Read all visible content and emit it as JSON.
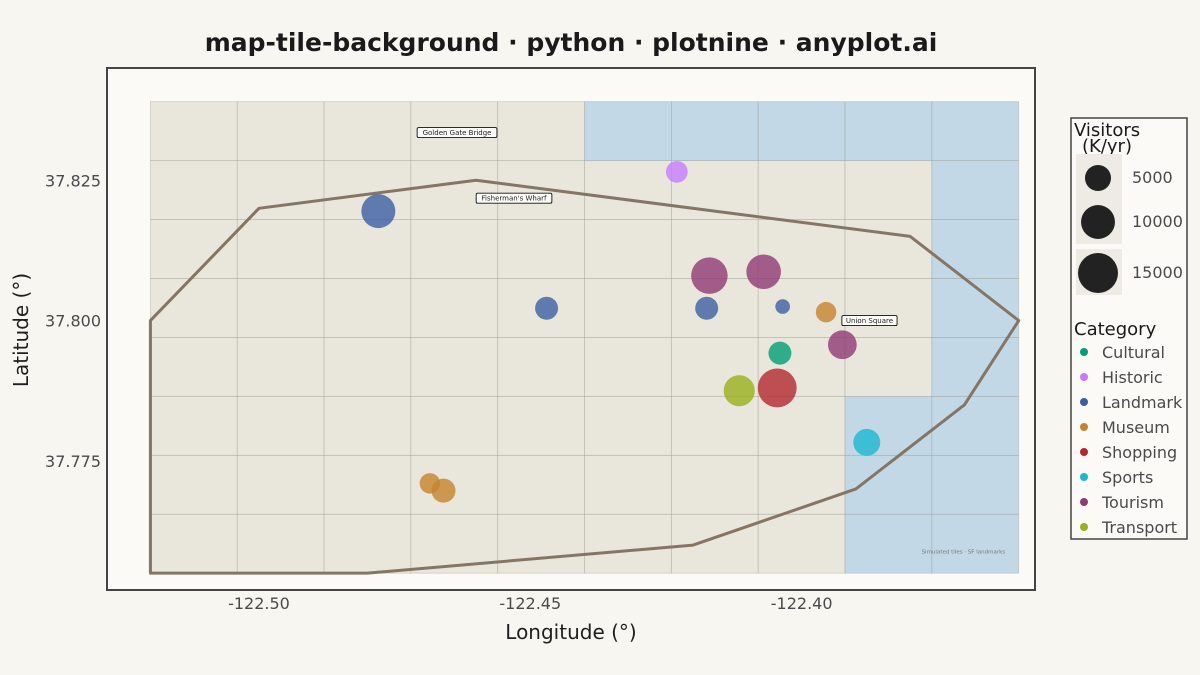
{
  "chart_data": {
    "type": "scatter",
    "title": "map-tile-background · python · plotnine · anyplot.ai",
    "xlabel": "Longitude (°)",
    "ylabel": "Latitude (°)",
    "xlim": [
      -122.528,
      -122.357
    ],
    "ylim": [
      37.752,
      37.845
    ],
    "x_ticks": [
      -122.5,
      -122.45,
      -122.4
    ],
    "x_tick_labels": [
      "-122.50",
      "-122.45",
      "-122.40"
    ],
    "y_ticks": [
      37.775,
      37.8,
      37.825
    ],
    "y_tick_labels": [
      "37.775",
      "37.800",
      "37.825"
    ],
    "grid": false,
    "tiles": {
      "x_breaks": [
        -122.52,
        -122.504,
        -122.488,
        -122.472,
        -122.456,
        -122.44,
        -122.424,
        -122.408,
        -122.392,
        -122.376,
        -122.36
      ],
      "y_breaks": [
        37.755,
        37.7655,
        37.776,
        37.7865,
        37.797,
        37.8075,
        37.818,
        37.8285,
        37.839
      ],
      "land_color": "#E9E6DC",
      "water_color": "#C2D8E6",
      "water_tiles": [
        [
          5,
          7
        ],
        [
          6,
          7
        ],
        [
          7,
          7
        ],
        [
          8,
          7
        ],
        [
          9,
          7
        ],
        [
          9,
          0
        ],
        [
          9,
          1
        ],
        [
          9,
          2
        ],
        [
          9,
          3
        ],
        [
          9,
          4
        ],
        [
          9,
          5
        ],
        [
          9,
          6
        ],
        [
          8,
          0
        ],
        [
          8,
          1
        ],
        [
          8,
          2
        ]
      ]
    },
    "boundary": {
      "color": "#857565",
      "points": [
        [
          -122.52,
          37.8
        ],
        [
          -122.5,
          37.82
        ],
        [
          -122.46,
          37.825
        ],
        [
          -122.38,
          37.815
        ],
        [
          -122.36,
          37.8
        ],
        [
          -122.37,
          37.785
        ],
        [
          -122.39,
          37.77
        ],
        [
          -122.42,
          37.76
        ],
        [
          -122.48,
          37.755
        ],
        [
          -122.52,
          37.755
        ]
      ]
    },
    "map_labels": [
      {
        "text": "Golden Gate Bridge",
        "x": -122.4635,
        "y": 37.8335
      },
      {
        "text": "Fisherman's Wharf",
        "x": -122.453,
        "y": 37.8218
      },
      {
        "text": "Union Square",
        "x": -122.3875,
        "y": 37.8
      }
    ],
    "credit": "Simulated tiles · SF landmarks",
    "size_legend": {
      "title_lines": [
        "Visitors",
        "(K/yr)"
      ],
      "values": [
        5000,
        10000,
        15000
      ]
    },
    "category_legend": {
      "title": "Category",
      "items": [
        {
          "name": "Cultural",
          "color": "#009E73"
        },
        {
          "name": "Historic",
          "color": "#C77CFF"
        },
        {
          "name": "Landmark",
          "color": "#3B5FA4"
        },
        {
          "name": "Museum",
          "color": "#C5832D"
        },
        {
          "name": "Shopping",
          "color": "#B2282F"
        },
        {
          "name": "Sports",
          "color": "#1CB8CF"
        },
        {
          "name": "Tourism",
          "color": "#8E3A75"
        },
        {
          "name": "Transport",
          "color": "#99B01D"
        }
      ]
    },
    "points": [
      {
        "x": -122.478,
        "y": 37.8195,
        "category": "Landmark",
        "visitors": 10000
      },
      {
        "x": -122.423,
        "y": 37.8265,
        "category": "Historic",
        "visitors": 3000
      },
      {
        "x": -122.447,
        "y": 37.8022,
        "category": "Landmark",
        "visitors": 3500
      },
      {
        "x": -122.417,
        "y": 37.808,
        "category": "Tourism",
        "visitors": 12000
      },
      {
        "x": -122.407,
        "y": 37.8087,
        "category": "Tourism",
        "visitors": 10500
      },
      {
        "x": -122.4175,
        "y": 37.8022,
        "category": "Landmark",
        "visitors": 3500
      },
      {
        "x": -122.4035,
        "y": 37.8025,
        "category": "Landmark",
        "visitors": 800
      },
      {
        "x": -122.3955,
        "y": 37.8015,
        "category": "Museum",
        "visitors": 2500
      },
      {
        "x": -122.3925,
        "y": 37.7957,
        "category": "Tourism",
        "visitors": 6500
      },
      {
        "x": -122.404,
        "y": 37.7942,
        "category": "Cultural",
        "visitors": 3500
      },
      {
        "x": -122.4115,
        "y": 37.7875,
        "category": "Transport",
        "visitors": 8000
      },
      {
        "x": -122.4045,
        "y": 37.788,
        "category": "Shopping",
        "visitors": 14000
      },
      {
        "x": -122.388,
        "y": 37.7783,
        "category": "Sports",
        "visitors": 5500
      },
      {
        "x": -122.4685,
        "y": 37.771,
        "category": "Museum",
        "visitors": 2500
      },
      {
        "x": -122.466,
        "y": 37.7697,
        "category": "Museum",
        "visitors": 4000
      }
    ]
  }
}
